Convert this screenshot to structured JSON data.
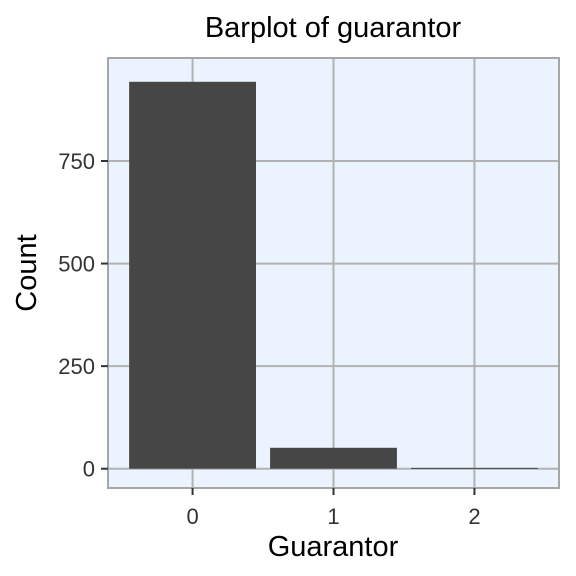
{
  "chart_data": {
    "type": "bar",
    "title": "Barplot of guarantor",
    "xlabel": "Guarantor",
    "ylabel": "Count",
    "categories": [
      "0",
      "1",
      "2"
    ],
    "values": [
      943,
      51,
      2
    ],
    "ylim": [
      -47,
      1001
    ],
    "yticks": [
      0,
      250,
      500,
      750
    ],
    "ytick_labels": [
      "0",
      "250",
      "500",
      "750"
    ],
    "grid": true,
    "legend": "none",
    "colors": {
      "bar": "#464646",
      "panel_background": "#ebf4fe",
      "grid": "#b2b2b2",
      "border": "#a6a6a6"
    }
  }
}
